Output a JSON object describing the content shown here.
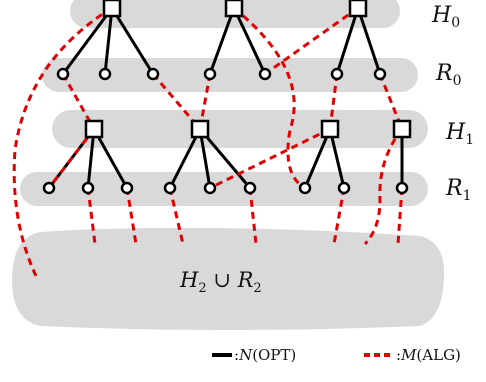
{
  "labels": {
    "h0": {
      "base": "H",
      "sub": "0"
    },
    "r0": {
      "base": "R",
      "sub": "0"
    },
    "h1": {
      "base": "H",
      "sub": "1"
    },
    "r1": {
      "base": "R",
      "sub": "1"
    },
    "bottom": {
      "a": "H",
      "a_sub": "2",
      "cup": " ∪ ",
      "b": "R",
      "b_sub": "2"
    }
  },
  "legend": {
    "solid": {
      "prefix": ":",
      "func": "N",
      "arg": "(OPT)"
    },
    "dashed": {
      "prefix": ":",
      "func": "M",
      "arg": "(ALG)"
    }
  },
  "colors": {
    "band": "#d9d9d9",
    "solid_edge": "#000000",
    "dashed_edge": "#e00000",
    "node_fill": "#ffffff",
    "node_stroke": "#000000"
  }
}
